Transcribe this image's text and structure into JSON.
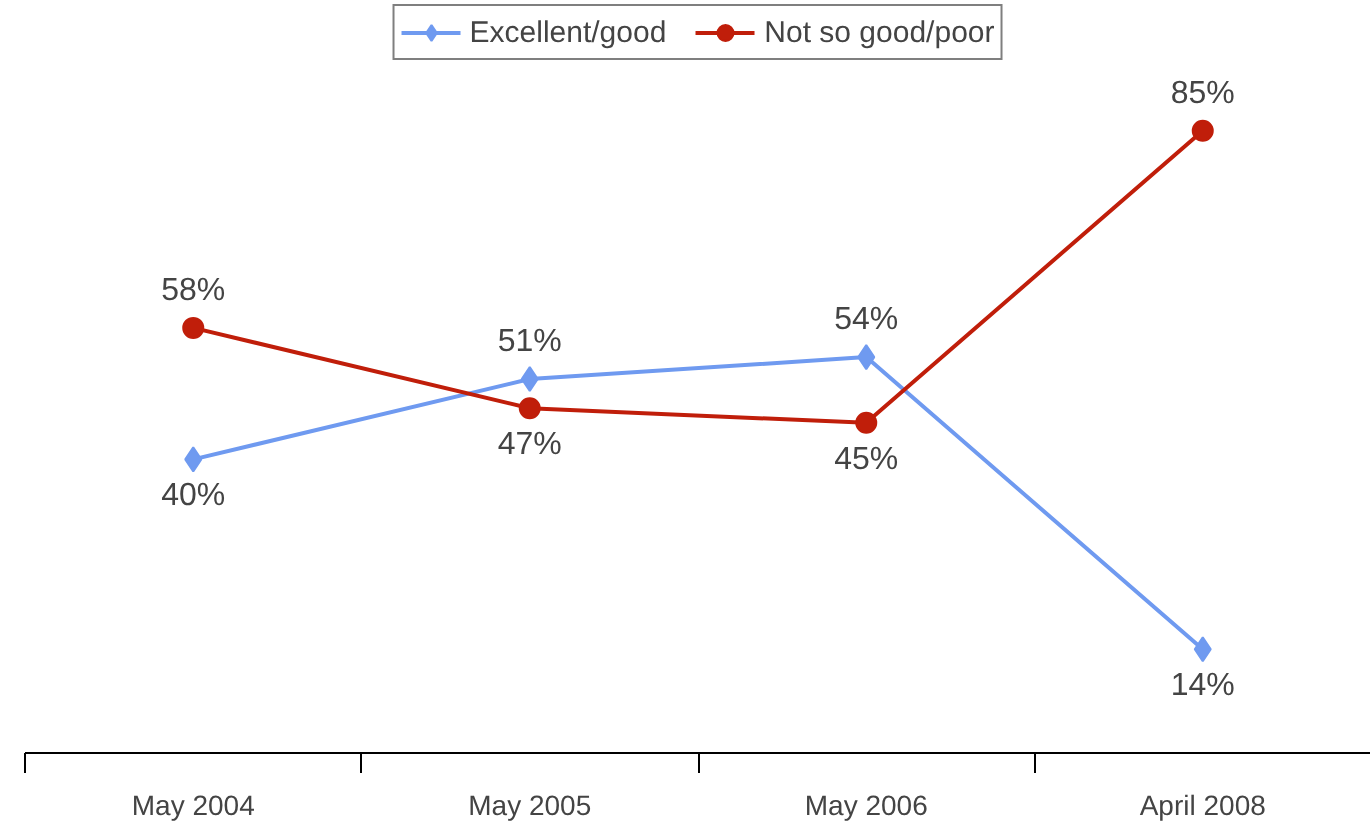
{
  "chart_data": {
    "type": "line",
    "categories": [
      "May 2004",
      "May 2005",
      "May 2006",
      "April 2008"
    ],
    "legend": "top",
    "series": [
      {
        "name": "Excellent/good",
        "color": "#6f9af0",
        "marker": "diamond",
        "values": [
          40,
          51,
          54,
          14
        ],
        "value_labels": [
          "40%",
          "51%",
          "54%",
          "14%"
        ]
      },
      {
        "name": "Not so good/poor",
        "color": "#c01e0a",
        "marker": "circle",
        "values": [
          58,
          47,
          45,
          85
        ],
        "value_labels": [
          "58%",
          "47%",
          "45%",
          "85%"
        ]
      }
    ]
  }
}
